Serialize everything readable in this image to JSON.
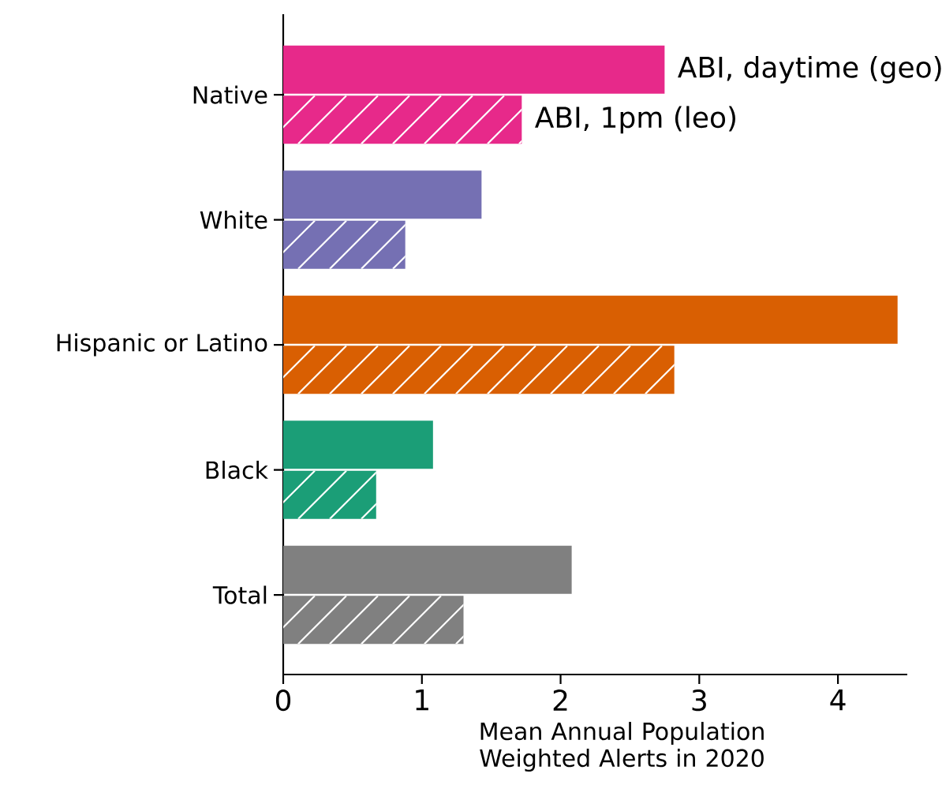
{
  "chart_data": {
    "type": "bar",
    "orientation": "horizontal",
    "categories": [
      "Native",
      "White",
      "Hispanic or Latino",
      "Black",
      "Total"
    ],
    "series": [
      {
        "name": "ABI, daytime (geo)",
        "colors": [
          "#e7298a",
          "#7570b3",
          "#d95f02",
          "#1b9e77",
          "#808080"
        ],
        "values": [
          2.75,
          1.43,
          4.43,
          1.08,
          2.08
        ]
      },
      {
        "name": "ABI, 1pm (leo)",
        "colors": [
          "#e7298a",
          "#7570b3",
          "#d95f02",
          "#1b9e77",
          "#808080"
        ],
        "values": [
          1.72,
          0.88,
          2.82,
          0.67,
          1.3
        ]
      }
    ],
    "xlim": [
      0,
      4.5
    ],
    "xticks": [
      0,
      1,
      2,
      3,
      4
    ],
    "xlabel": "Mean Annual Population Weighted Alerts in 2020",
    "grid": false
  }
}
